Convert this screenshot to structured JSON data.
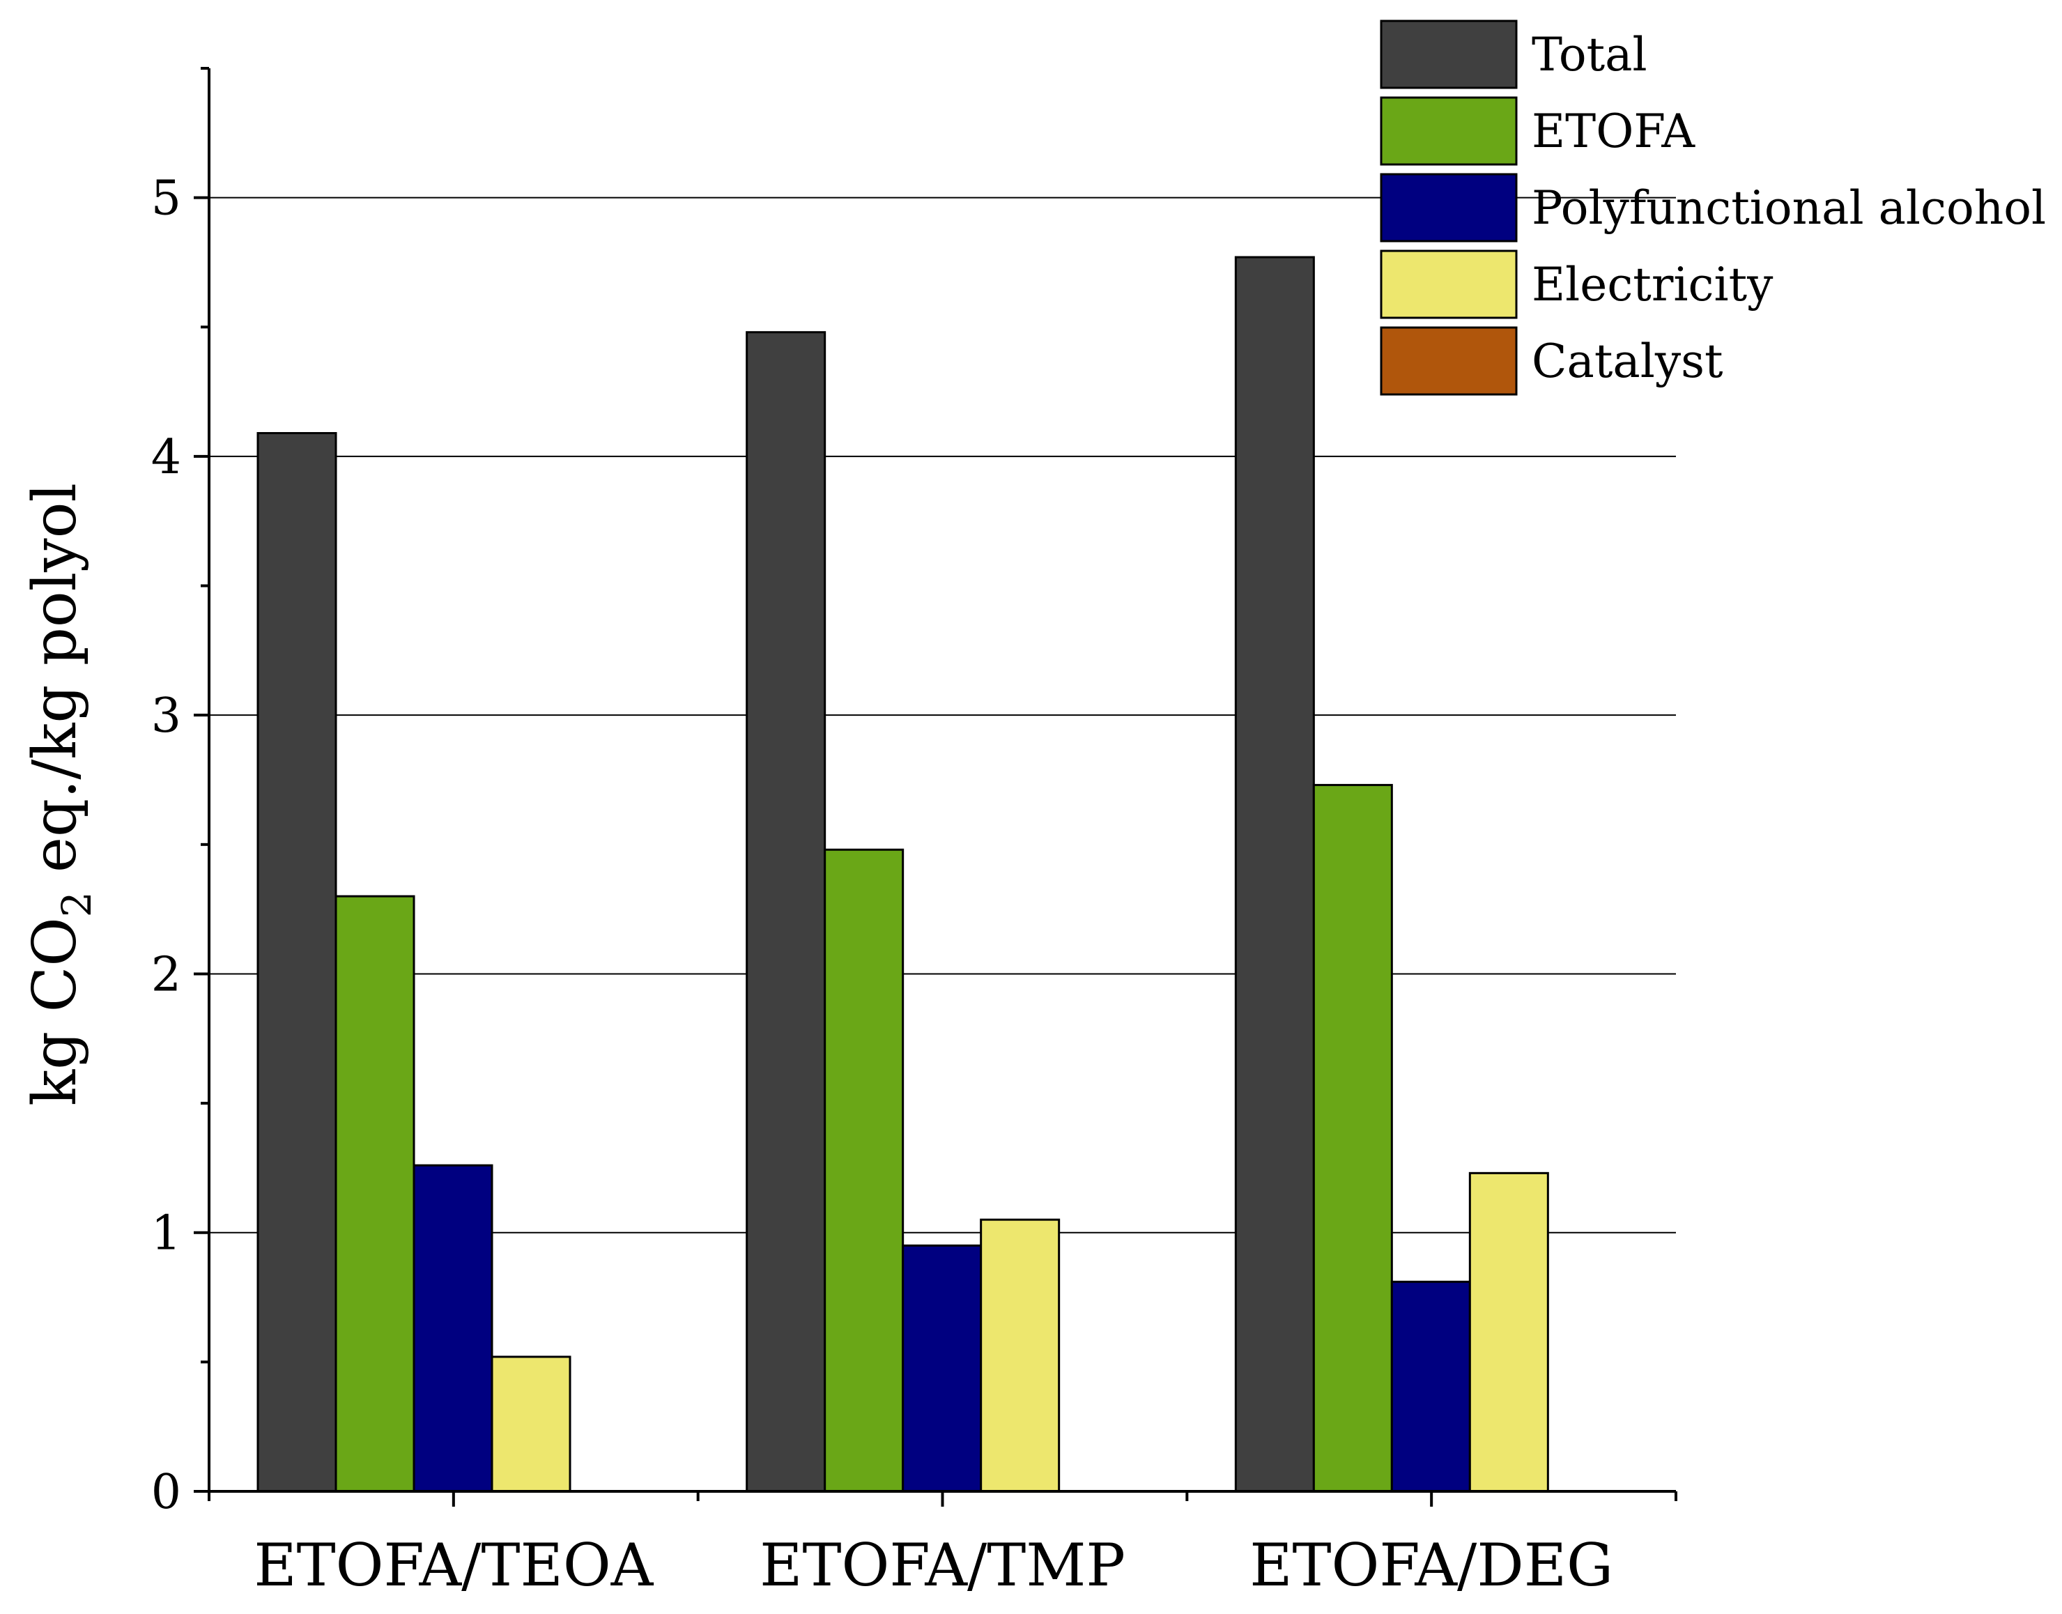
{
  "chart_data": {
    "type": "bar",
    "title": "",
    "xlabel": "",
    "ylabel": {
      "prefix": "kg CO",
      "subscript": "2",
      "suffix": " eq./kg polyol"
    },
    "ylim": [
      0,
      5.5
    ],
    "yticks": [
      0,
      1,
      2,
      3,
      4,
      5
    ],
    "ytick_labels": [
      "0",
      "1",
      "2",
      "3",
      "4",
      "5"
    ],
    "grid": "horizontal",
    "legend_position": "top-right",
    "categories": [
      "ETOFA/TEOA",
      "ETOFA/TMP",
      "ETOFA/DEG"
    ],
    "series": [
      {
        "name": "Total",
        "color": "#404040",
        "values": [
          4.09,
          4.48,
          4.77
        ]
      },
      {
        "name": "ETOFA",
        "color": "#6aa717",
        "values": [
          2.3,
          2.48,
          2.73
        ]
      },
      {
        "name": "Polyfunctional alcohol",
        "color": "#000080",
        "values": [
          1.26,
          0.95,
          0.81
        ]
      },
      {
        "name": "Electricity",
        "color": "#ede76e",
        "values": [
          0.52,
          1.05,
          1.23
        ]
      },
      {
        "name": "Catalyst",
        "color": "#b0560c",
        "values": [
          0,
          0,
          0
        ]
      }
    ]
  }
}
